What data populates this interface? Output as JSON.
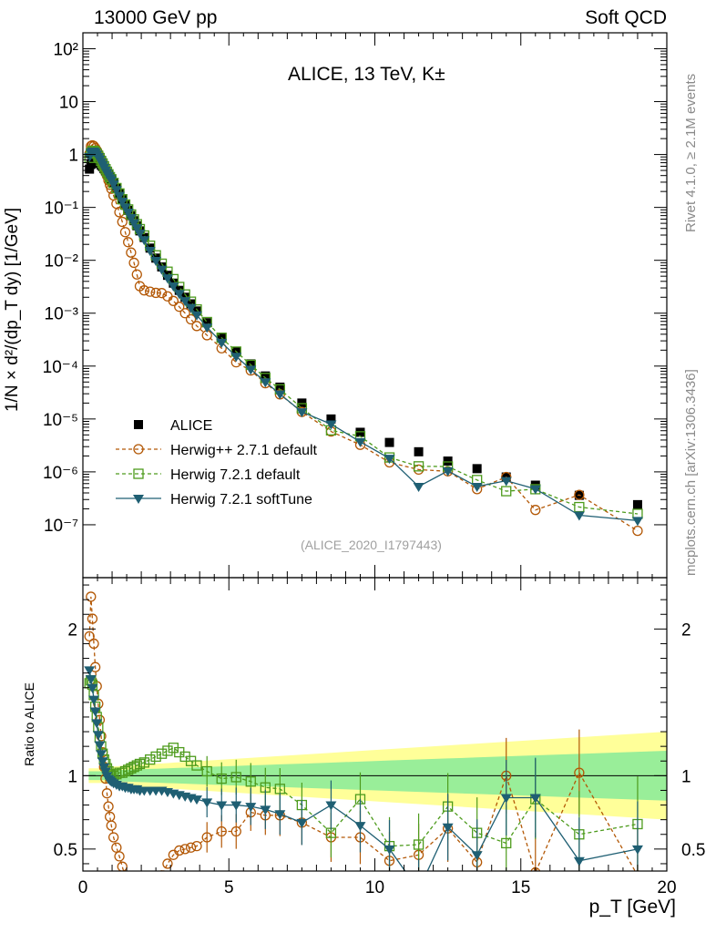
{
  "header": {
    "left": "13000 GeV pp",
    "right": "Soft QCD"
  },
  "side_text": {
    "top": "Rivet 4.1.0, ≥ 2.1M events",
    "bottom": "mcplots.cern.ch [arXiv:1306.3436]"
  },
  "chart_data": [
    {
      "type": "scatter",
      "title": "ALICE, 13 TeV, K±",
      "analysis_tag": "(ALICE_2020_I1797443)",
      "ylabel": "1/N × d²/(dp_T dy) [1/GeV]",
      "xlabel": "p_T [GeV]",
      "yscale": "log",
      "ylim": [
        1e-08,
        200
      ],
      "xlim": [
        0,
        20
      ],
      "ytick_labels": [
        "10⁻⁷",
        "10⁻⁶",
        "10⁻⁵",
        "10⁻⁴",
        "10⁻³",
        "10⁻²",
        "10⁻¹",
        "1",
        "10",
        "10²"
      ],
      "x": [
        0.225,
        0.275,
        0.325,
        0.375,
        0.425,
        0.475,
        0.525,
        0.575,
        0.625,
        0.675,
        0.725,
        0.775,
        0.825,
        0.875,
        0.925,
        0.975,
        1.05,
        1.15,
        1.25,
        1.35,
        1.45,
        1.55,
        1.65,
        1.75,
        1.85,
        1.95,
        2.1,
        2.3,
        2.5,
        2.7,
        2.9,
        3.1,
        3.3,
        3.5,
        3.7,
        3.9,
        4.25,
        4.75,
        5.25,
        5.75,
        6.25,
        6.75,
        7.5,
        8.5,
        9.5,
        10.5,
        11.5,
        12.5,
        13.5,
        14.5,
        15.5,
        17.0,
        19.0
      ],
      "series": [
        {
          "name": "ALICE",
          "color": "#000000",
          "marker": "filled-square",
          "values": [
            0.53,
            0.65,
            0.72,
            0.76,
            0.76,
            0.74,
            0.71,
            0.68,
            0.63,
            0.59,
            0.54,
            0.49,
            0.45,
            0.41,
            0.37,
            0.34,
            0.29,
            0.23,
            0.18,
            0.14,
            0.11,
            0.088,
            0.07,
            0.056,
            0.045,
            0.036,
            0.027,
            0.017,
            0.011,
            0.0075,
            0.0052,
            0.0037,
            0.0027,
            0.002,
            0.0015,
            0.0011,
            0.00066,
            0.00035,
            0.00019,
            0.00011,
            6.5e-05,
            4e-05,
            2e-05,
            1e-05,
            5.6e-06,
            3.6e-06,
            2.4e-06,
            1.6e-06,
            1.15e-06,
            8e-07,
            5.6e-07,
            3.6e-07,
            2.4e-07
          ]
        },
        {
          "name": "Herwig++ 2.7.1 default",
          "color": "#b35806",
          "marker": "open-circle",
          "dashed": true,
          "ratio": [
            1.95,
            2.22,
            2.07,
            1.9,
            1.74,
            1.61,
            1.49,
            1.38,
            1.27,
            1.16,
            1.06,
            0.98,
            0.88,
            0.79,
            0.72,
            0.66,
            0.58,
            0.51,
            0.45,
            0.38,
            0.31,
            0.25,
            0.2,
            0.16,
            0.12,
            0.09,
            0.1,
            0.15,
            0.22,
            0.32,
            0.4,
            0.46,
            0.49,
            0.5,
            0.51,
            0.52,
            0.58,
            0.62,
            0.62,
            0.75,
            0.73,
            0.73,
            0.68,
            0.58,
            0.58,
            0.42,
            0.46,
            0.64,
            0.41,
            1.0,
            0.34,
            1.02,
            0.32
          ]
        },
        {
          "name": "Herwig 7.2.1 default",
          "color": "#4d9b1c",
          "marker": "open-square",
          "dashed": true,
          "ratio": [
            1.63,
            1.65,
            1.62,
            1.55,
            1.47,
            1.4,
            1.33,
            1.26,
            1.2,
            1.15,
            1.11,
            1.08,
            1.05,
            1.03,
            1.01,
            1.0,
            1.0,
            1.01,
            1.02,
            1.02,
            1.03,
            1.04,
            1.05,
            1.06,
            1.07,
            1.08,
            1.09,
            1.11,
            1.13,
            1.15,
            1.17,
            1.19,
            1.16,
            1.13,
            1.1,
            1.07,
            1.03,
            0.98,
            0.99,
            0.96,
            0.92,
            0.91,
            0.8,
            0.61,
            0.84,
            0.52,
            0.53,
            0.79,
            0.61,
            0.54,
            0.84,
            0.6,
            0.67
          ]
        },
        {
          "name": "Herwig 7.2.1 softTune",
          "color": "#1f5f73",
          "marker": "filled-triangle-down",
          "ratio": [
            1.72,
            1.66,
            1.6,
            1.52,
            1.44,
            1.36,
            1.28,
            1.21,
            1.15,
            1.1,
            1.06,
            1.03,
            1.0,
            0.98,
            0.97,
            0.96,
            0.95,
            0.94,
            0.93,
            0.93,
            0.92,
            0.92,
            0.91,
            0.91,
            0.91,
            0.9,
            0.9,
            0.9,
            0.9,
            0.9,
            0.89,
            0.88,
            0.87,
            0.86,
            0.85,
            0.84,
            0.82,
            0.8,
            0.8,
            0.79,
            0.77,
            0.74,
            0.68,
            0.8,
            0.66,
            0.5,
            0.22,
            0.65,
            0.46,
            0.85,
            0.85,
            0.42,
            0.5
          ]
        }
      ],
      "legend_position": "bottom-left"
    },
    {
      "type": "line",
      "ylabel": "Ratio to ALICE",
      "ylim": [
        0.35,
        2.35
      ],
      "xlim": [
        0,
        20
      ],
      "xticks": [
        "0",
        "5",
        "10",
        "15",
        "20"
      ],
      "yticks": [
        "0.5",
        "1",
        "2"
      ],
      "bands": {
        "inner": "#99ee99",
        "outer": "#ffff99"
      }
    }
  ]
}
